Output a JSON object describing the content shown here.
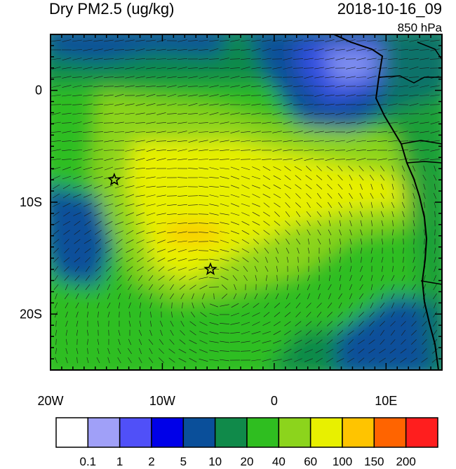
{
  "title": "Dry PM2.5 (ug/kg)",
  "datetime": "2018-10-16_09",
  "level": "850 hPa",
  "axes": {
    "lon_ticks": [
      {
        "value": -20,
        "label": "20W"
      },
      {
        "value": -10,
        "label": "10W"
      },
      {
        "value": 0,
        "label": "0"
      },
      {
        "value": 10,
        "label": "10E"
      }
    ],
    "lat_ticks": [
      {
        "value": 0,
        "label": "0"
      },
      {
        "value": -10,
        "label": "10S"
      },
      {
        "value": -20,
        "label": "20S"
      }
    ],
    "lon_range": [
      -20,
      15
    ],
    "lat_range": [
      -25,
      5
    ]
  },
  "colorbar": {
    "colors": [
      "#ffffff",
      "#a0a0f8",
      "#5050f8",
      "#0000e8",
      "#0a4f9a",
      "#108a4a",
      "#2fbe20",
      "#8cd41c",
      "#e8f000",
      "#ffc400",
      "#ff6400",
      "#ff1e1e"
    ],
    "labels": [
      "0.1",
      "1",
      "2",
      "5",
      "10",
      "20",
      "40",
      "60",
      "100",
      "150",
      "200"
    ]
  },
  "markers": [
    {
      "name": "star",
      "lon": -14.3,
      "lat": -8.0
    },
    {
      "name": "star",
      "lon": -5.7,
      "lat": -16.0
    }
  ]
}
